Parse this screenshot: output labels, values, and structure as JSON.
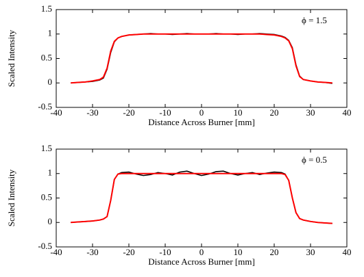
{
  "chart_data": [
    {
      "type": "line",
      "xlabel": "Distance Across Burner [mm]",
      "ylabel": "Scaled Intensity",
      "annotation": "ϕ = 1.5",
      "x": [
        -36,
        -34,
        -32,
        -30,
        -28,
        -27,
        -26,
        -25,
        -24,
        -23,
        -22,
        -20,
        -18,
        -16,
        -14,
        -12,
        -10,
        -8,
        -6,
        -4,
        -2,
        0,
        2,
        4,
        6,
        8,
        10,
        12,
        14,
        16,
        18,
        20,
        22,
        23,
        24,
        25,
        26,
        27,
        28,
        30,
        32,
        34,
        36
      ],
      "series": [
        {
          "color": "#000000",
          "values": [
            0,
            0.01,
            0.02,
            0.03,
            0.06,
            0.1,
            0.28,
            0.62,
            0.84,
            0.92,
            0.95,
            0.98,
            0.99,
            1.0,
            1.01,
            1.0,
            1.0,
            0.99,
            1.0,
            1.01,
            1.0,
            1.0,
            1.0,
            1.01,
            1.0,
            1.0,
            0.99,
            1.0,
            1.0,
            1.01,
            1.0,
            0.99,
            0.96,
            0.93,
            0.87,
            0.72,
            0.37,
            0.14,
            0.07,
            0.04,
            0.02,
            0.01,
            -0.01
          ]
        },
        {
          "color": "#ff0000",
          "values": [
            0,
            0.01,
            0.02,
            0.04,
            0.07,
            0.12,
            0.3,
            0.65,
            0.85,
            0.92,
            0.95,
            0.98,
            0.99,
            1,
            1,
            1,
            1,
            1,
            1,
            1,
            1,
            1,
            1,
            1,
            1,
            1,
            1,
            1,
            1,
            1,
            0.99,
            0.98,
            0.95,
            0.92,
            0.86,
            0.7,
            0.35,
            0.13,
            0.07,
            0.04,
            0.02,
            0.01,
            0
          ]
        }
      ],
      "xlim": [
        -40,
        40
      ],
      "ylim": [
        -0.5,
        1.5
      ],
      "xticks": [
        -40,
        -30,
        -20,
        -10,
        0,
        10,
        20,
        30,
        40
      ],
      "yticks": [
        -0.5,
        0,
        0.5,
        1,
        1.5
      ]
    },
    {
      "type": "line",
      "xlabel": "Distance Across Burner [mm]",
      "ylabel": "Scaled Intensity",
      "annotation": "ϕ = 0.5",
      "x": [
        -36,
        -34,
        -32,
        -30,
        -28,
        -27,
        -26,
        -25,
        -24,
        -23,
        -22,
        -20,
        -18,
        -16,
        -14,
        -12,
        -10,
        -8,
        -6,
        -4,
        -2,
        0,
        2,
        4,
        6,
        8,
        10,
        12,
        14,
        16,
        18,
        20,
        22,
        23,
        24,
        25,
        26,
        27,
        28,
        30,
        32,
        34,
        36
      ],
      "series": [
        {
          "color": "#000000",
          "values": [
            0,
            0.01,
            0.02,
            0.03,
            0.05,
            0.07,
            0.12,
            0.45,
            0.88,
            0.99,
            1.02,
            1.03,
            0.99,
            0.96,
            0.98,
            1.02,
            1.0,
            0.97,
            1.03,
            1.05,
            1.0,
            0.96,
            0.99,
            1.04,
            1.05,
            1.0,
            0.97,
            1.0,
            1.02,
            0.98,
            1.01,
            1.03,
            1.02,
            0.99,
            0.86,
            0.5,
            0.2,
            0.08,
            0.05,
            0.02,
            0.0,
            -0.01,
            -0.02
          ]
        },
        {
          "color": "#ff0000",
          "values": [
            0,
            0.01,
            0.02,
            0.03,
            0.05,
            0.07,
            0.12,
            0.45,
            0.88,
            0.99,
            1.0,
            1,
            1,
            1,
            1,
            1,
            1,
            1,
            1,
            1,
            1,
            1,
            1,
            1,
            1,
            1,
            1,
            1,
            1,
            1,
            1,
            1,
            1.0,
            0.98,
            0.86,
            0.5,
            0.2,
            0.08,
            0.05,
            0.02,
            0.0,
            -0.01,
            -0.02
          ]
        }
      ],
      "xlim": [
        -40,
        40
      ],
      "ylim": [
        -0.5,
        1.5
      ],
      "xticks": [
        -40,
        -30,
        -20,
        -10,
        0,
        10,
        20,
        30,
        40
      ],
      "yticks": [
        -0.5,
        0,
        0.5,
        1,
        1.5
      ]
    }
  ]
}
